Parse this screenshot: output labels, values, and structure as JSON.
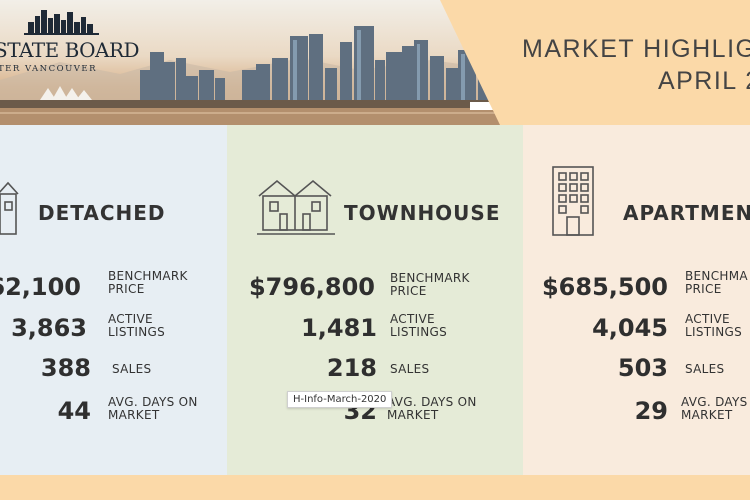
{
  "header": {
    "logo_board": "STATE BOARD",
    "logo_sub": "TER VANCOUVER",
    "title_line1": "MARKET HIGHLIGH",
    "title_line2": "APRIL 20"
  },
  "columns": [
    {
      "type": "DETACHED",
      "icon": "house-icon",
      "benchmark_price": "62,100",
      "active_listings": "3,863",
      "sales": "388",
      "days_on_market": "44"
    },
    {
      "type": "TOWNHOUSE",
      "icon": "townhouse-icon",
      "benchmark_price": "$796,800",
      "active_listings": "1,481",
      "sales": "218",
      "days_on_market": "32"
    },
    {
      "type": "APARTMENT",
      "icon": "apartment-building-icon",
      "benchmark_price": "$685,500",
      "active_listings": "4,045",
      "sales": "503",
      "days_on_market": "29"
    }
  ],
  "labels": {
    "benchmark_1": "BENCHMARK",
    "benchmark_1_cut": "BENCHMA",
    "benchmark_2": "PRICE",
    "active_1": "ACTIVE",
    "active_2": "LISTINGS",
    "sales": "SALES",
    "dom_1": "AVG. DAYS ON",
    "dom_1_cut": "AVG. DAYS",
    "dom_2": "MARKET"
  },
  "tooltip": "H-Info-March-2020",
  "colors": {
    "detached_bg": "#e7eef3",
    "townhouse_bg": "#e5ebd7",
    "apartment_bg": "#f9ebdd",
    "accent": "#fbd9a8"
  }
}
